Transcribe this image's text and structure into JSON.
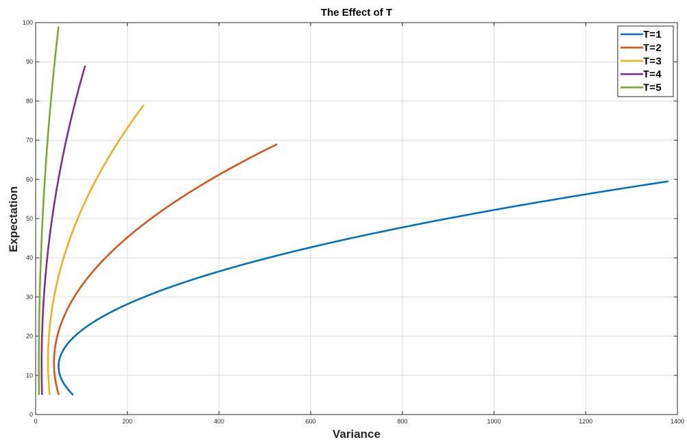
{
  "chart_data": {
    "type": "line",
    "title": "The Effect of T",
    "xlabel": "Variance",
    "ylabel": "Expectation",
    "xlim": [
      0,
      1400
    ],
    "ylim": [
      0,
      100
    ],
    "xticks": [
      0,
      200,
      400,
      600,
      800,
      1000,
      1200,
      1400
    ],
    "yticks": [
      0,
      10,
      20,
      30,
      40,
      50,
      60,
      70,
      80,
      90,
      100
    ],
    "grid": true,
    "legend_position": "top-right",
    "series": [
      {
        "name": "T=1",
        "color": "#0072BD",
        "min_variance": 50,
        "min_variance_expectation": 12.3,
        "start": [
          79,
          5
        ],
        "end": [
          1380,
          59.5
        ]
      },
      {
        "name": "T=2",
        "color": "#D95319",
        "min_variance": 40,
        "min_variance_expectation": 13.2,
        "start": [
          52,
          5
        ],
        "end": [
          527,
          69
        ]
      },
      {
        "name": "T=3",
        "color": "#EDB120",
        "min_variance": 27,
        "min_variance_expectation": 13.6,
        "start": [
          30,
          5
        ],
        "end": [
          236,
          79
        ]
      },
      {
        "name": "T=4",
        "color": "#7E2F8E",
        "min_variance": 13,
        "min_variance_expectation": 12.5,
        "start": [
          15,
          5
        ],
        "end": [
          108,
          89
        ]
      },
      {
        "name": "T=5",
        "color": "#77AC30",
        "min_variance": 7,
        "min_variance_expectation": 12.2,
        "start": [
          9,
          5
        ],
        "end": [
          50,
          99
        ]
      }
    ]
  }
}
